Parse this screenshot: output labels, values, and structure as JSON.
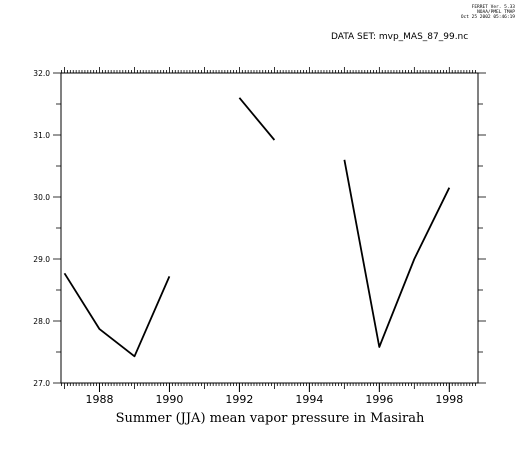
{
  "stamp": {
    "line1": "FERRET Ver. 5.33",
    "line2": "NOAA/PMEL TMAP",
    "line3": "Oct 25 2002 05:46:19"
  },
  "dataset": {
    "label": "DATA SET: mvp_MAS_87_99.nc"
  },
  "chart_data": {
    "type": "line",
    "xlabel": "Summer (JJA) mean vapor pressure in Masirah",
    "ylabel": "",
    "xlim": [
      1987,
      1999
    ],
    "ylim": [
      27.0,
      32.0
    ],
    "x_ticks": [
      "1988",
      "1990",
      "1992",
      "1994",
      "1996",
      "1998"
    ],
    "y_ticks": [
      "27.0",
      "28.0",
      "29.0",
      "30.0",
      "31.0",
      "32.0"
    ],
    "series": [
      {
        "color": "#000000",
        "points": [
          [
            1987,
            28.77
          ],
          [
            1988,
            27.87
          ],
          [
            1989,
            27.43
          ],
          [
            1990,
            28.72
          ],
          [
            1991,
            null
          ],
          [
            1992,
            31.6
          ],
          [
            1993,
            30.92
          ],
          [
            1994,
            null
          ],
          [
            1995,
            30.6
          ],
          [
            1996,
            27.58
          ],
          [
            1997,
            29.0
          ],
          [
            1998,
            30.15
          ]
        ]
      }
    ],
    "grid": false
  }
}
